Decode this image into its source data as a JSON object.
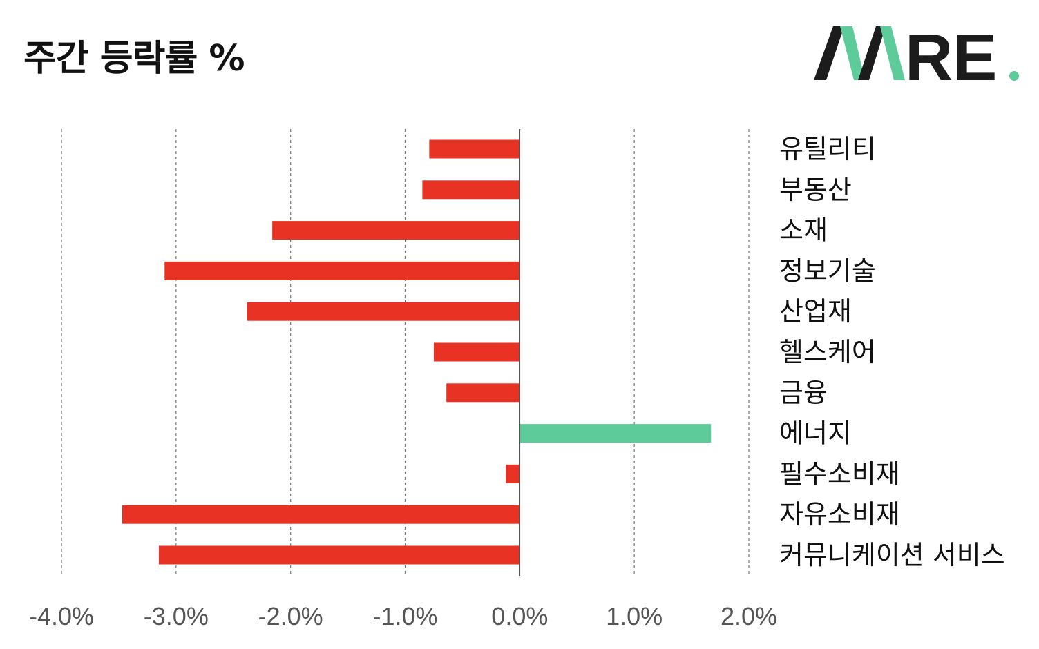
{
  "header": {
    "title": "주간 등락률 %",
    "logo": {
      "text": "AWARE",
      "colors": {
        "dark": "#1c1c1c",
        "accent": "#5ecb9a"
      }
    }
  },
  "chart_data": {
    "type": "bar",
    "orientation": "horizontal",
    "title": "주간 등락률 %",
    "categories": [
      "유틸리티",
      "부동산",
      "소재",
      "정보기술",
      "산업재",
      "헬스케어",
      "금융",
      "에너지",
      "필수소비재",
      "자유소비재",
      "커뮤니케이션 서비스"
    ],
    "series": [
      {
        "values": [
          -0.79,
          -0.85,
          -2.16,
          -3.1,
          -2.38,
          -0.75,
          -0.64,
          1.67,
          -0.12,
          -3.47,
          -3.15
        ]
      }
    ],
    "xlim": [
      -4.0,
      2.0
    ],
    "xticks": [
      "-4.0%",
      "-3.0%",
      "-2.0%",
      "-1.0%",
      "0.0%",
      "1.0%",
      "2.0%"
    ],
    "xtick_values": [
      -4,
      -3,
      -2,
      -1,
      0,
      1,
      2
    ],
    "grid": "vertical-dashed",
    "legend": "none",
    "colors": {
      "negative": "#e83324",
      "positive": "#5ecb9a",
      "grid": "#777777",
      "zero_line": "#555555"
    }
  }
}
